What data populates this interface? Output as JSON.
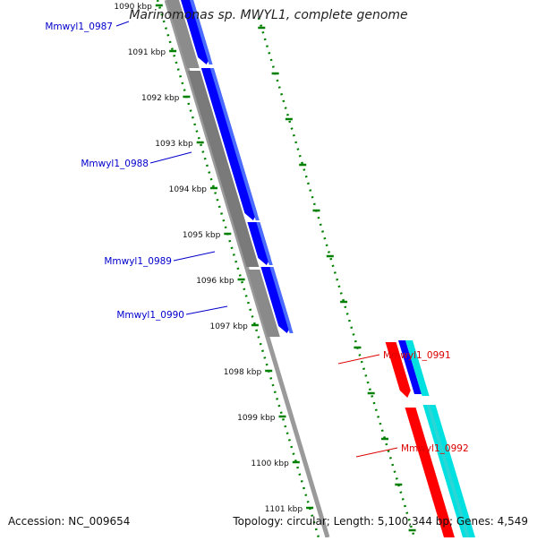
{
  "title": "Marinomonas sp. MWYL1, complete genome",
  "footer": {
    "accession": "Accession: NC_009654",
    "topology": "Topology: circular; Length: 5,100,344 bp; Genes: 4,549"
  },
  "ticks": [
    {
      "kb": 1090,
      "label": "1090 kbp"
    },
    {
      "kb": 1091,
      "label": "1091 kbp"
    },
    {
      "kb": 1092,
      "label": "1092 kbp"
    },
    {
      "kb": 1093,
      "label": "1093 kbp"
    },
    {
      "kb": 1094,
      "label": "1094 kbp"
    },
    {
      "kb": 1095,
      "label": "1095 kbp"
    },
    {
      "kb": 1096,
      "label": "1096 kbp"
    },
    {
      "kb": 1097,
      "label": "1097 kbp"
    },
    {
      "kb": 1098,
      "label": "1098 kbp"
    },
    {
      "kb": 1099,
      "label": "1099 kbp"
    },
    {
      "kb": 1100,
      "label": "1100 kbp"
    },
    {
      "kb": 1101,
      "label": "1101 kbp"
    }
  ],
  "genes": [
    {
      "name": "Mmwyl1_0987",
      "strand": "forward",
      "color": "#0000cc"
    },
    {
      "name": "Mmwyl1_0988",
      "strand": "forward",
      "color": "#0000cc"
    },
    {
      "name": "Mmwyl1_0989",
      "strand": "forward",
      "color": "#0000cc"
    },
    {
      "name": "Mmwyl1_0990",
      "strand": "forward",
      "color": "#0000cc"
    },
    {
      "name": "Mmwyl1_0991",
      "strand": "reverse",
      "color": "#dd0000"
    },
    {
      "name": "Mmwyl1_0992",
      "strand": "reverse",
      "color": "#dd0000"
    }
  ],
  "colors": {
    "forward_cds": "#0000ff",
    "reverse_cds": "#ff0000",
    "cyan_track": "#00e0e0",
    "backbone": "#808080",
    "dark_track": "#707070",
    "tick_green": "#008000"
  }
}
